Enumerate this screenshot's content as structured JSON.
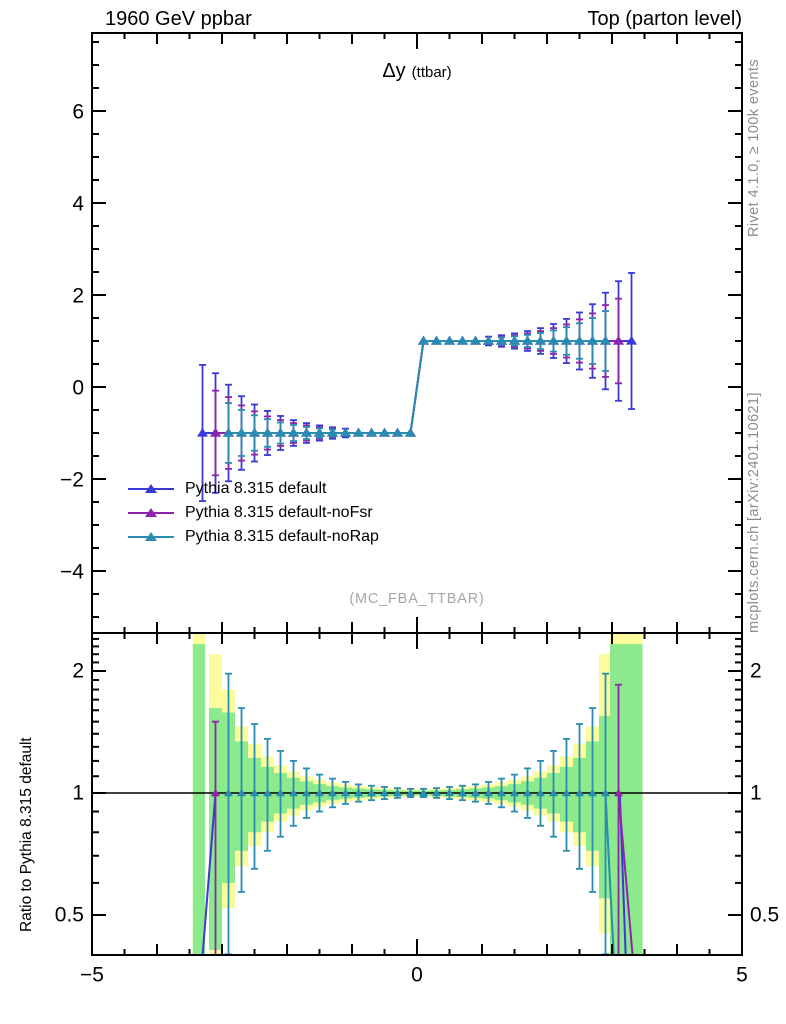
{
  "header": {
    "left": "1960 GeV ppbar",
    "right": "Top (parton level)"
  },
  "side_labels": {
    "top_right": "Rivet 4.1.0, ≥ 100k events",
    "bottom_right": "mcplots.cern.ch [arXiv:2401.10621]"
  },
  "watermark": "(MC_FBA_TTBAR)",
  "colors": {
    "blue": "#3a3ad6",
    "purple": "#8e24aa",
    "teal": "#2a8cb0",
    "band_yellow": "#fcfc9c",
    "band_green": "#8cea8c",
    "frame": "#000000",
    "gray_text": "#8c8c8c",
    "watermark_gray": "#a6a6a6"
  },
  "legend": {
    "items": [
      {
        "label": "Pythia 8.315 default",
        "color_key": "blue"
      },
      {
        "label": "Pythia 8.315 default-noFsr",
        "color_key": "purple"
      },
      {
        "label": "Pythia 8.315 default-noRap",
        "color_key": "teal"
      }
    ]
  },
  "chart_data": [
    {
      "type": "step-errorbar",
      "title_main": "Δy",
      "title_sub": "(ttbar)",
      "xlabel": "",
      "ylabel": "",
      "xlim": [
        -5,
        5
      ],
      "ylim": [
        -5.35,
        7.7
      ],
      "grid": false,
      "yticks": {
        "values": [
          -4,
          -2,
          0,
          2,
          4,
          6
        ],
        "labels": [
          "−4",
          "−2",
          "0",
          "2",
          "4",
          "6"
        ]
      },
      "series": [
        {
          "name": "Pythia 8.315 default",
          "color_key": "blue",
          "marker": "triangle",
          "bin_width": 0.2,
          "centers": [
            -3.3,
            -3.1,
            -2.9,
            -2.7,
            -2.5,
            -2.3,
            -2.1,
            -1.9,
            -1.7,
            -1.5,
            -1.3,
            -1.1,
            -0.9,
            -0.7,
            -0.5,
            -0.3,
            -0.1,
            0.1,
            0.3,
            0.5,
            0.7,
            0.9,
            1.1,
            1.3,
            1.5,
            1.7,
            1.9,
            2.1,
            2.3,
            2.5,
            2.7,
            2.9,
            3.1,
            3.3
          ],
          "values": [
            -1,
            -1,
            -1,
            -1,
            -1,
            -1,
            -1,
            -1,
            -1,
            -1,
            -1,
            -1,
            -1,
            -1,
            -1,
            -1,
            -1,
            1,
            1,
            1,
            1,
            1,
            1,
            1,
            1,
            1,
            1,
            1,
            1,
            1,
            1,
            1,
            1,
            1
          ],
          "errors": [
            1.48,
            1.3,
            1.05,
            0.8,
            0.62,
            0.48,
            0.37,
            0.28,
            0.215,
            0.165,
            0.125,
            0.095,
            0.075,
            0.06,
            0.05,
            0.042,
            0.036,
            0.036,
            0.042,
            0.05,
            0.06,
            0.075,
            0.095,
            0.125,
            0.165,
            0.215,
            0.28,
            0.37,
            0.48,
            0.62,
            0.8,
            1.05,
            1.3,
            1.48
          ]
        },
        {
          "name": "Pythia 8.315 default-noFsr",
          "color_key": "purple",
          "marker": "triangle",
          "bin_width": 0.2,
          "centers": [
            -3.1,
            -2.9,
            -2.7,
            -2.5,
            -2.3,
            -2.1,
            -1.9,
            -1.7,
            -1.5,
            -1.3,
            -1.1,
            -0.9,
            -0.7,
            -0.5,
            -0.3,
            -0.1,
            0.1,
            0.3,
            0.5,
            0.7,
            0.9,
            1.1,
            1.3,
            1.5,
            1.7,
            1.9,
            2.1,
            2.3,
            2.5,
            2.7,
            2.9,
            3.1
          ],
          "values": [
            -1,
            -1,
            -1,
            -1,
            -1,
            -1,
            -1,
            -1,
            -1,
            -1,
            -1,
            -1,
            -1,
            -1,
            -1,
            -1,
            1,
            1,
            1,
            1,
            1,
            1,
            1,
            1,
            1,
            1,
            1,
            1,
            1,
            1,
            1,
            1
          ],
          "errors": [
            0.92,
            0.78,
            0.6,
            0.47,
            0.36,
            0.28,
            0.215,
            0.165,
            0.125,
            0.095,
            0.073,
            0.058,
            0.047,
            0.039,
            0.033,
            0.028,
            0.028,
            0.033,
            0.039,
            0.047,
            0.058,
            0.073,
            0.095,
            0.125,
            0.165,
            0.215,
            0.28,
            0.36,
            0.47,
            0.6,
            0.78,
            0.92
          ]
        },
        {
          "name": "Pythia 8.315 default-noRap",
          "color_key": "teal",
          "marker": "triangle",
          "bin_width": 0.2,
          "centers": [
            -2.9,
            -2.7,
            -2.5,
            -2.3,
            -2.1,
            -1.9,
            -1.7,
            -1.5,
            -1.3,
            -1.1,
            -0.9,
            -0.7,
            -0.5,
            -0.3,
            -0.1,
            0.1,
            0.3,
            0.5,
            0.7,
            0.9,
            1.1,
            1.3,
            1.5,
            1.7,
            1.9,
            2.1,
            2.3,
            2.5,
            2.7,
            2.9
          ],
          "values": [
            -1,
            -1,
            -1,
            -1,
            -1,
            -1,
            -1,
            -1,
            -1,
            -1,
            -1,
            -1,
            -1,
            -1,
            -1,
            1,
            1,
            1,
            1,
            1,
            1,
            1,
            1,
            1,
            1,
            1,
            1,
            1,
            1,
            1
          ],
          "errors": [
            0.65,
            0.5,
            0.385,
            0.3,
            0.23,
            0.175,
            0.133,
            0.102,
            0.078,
            0.059,
            0.047,
            0.037,
            0.031,
            0.026,
            0.022,
            0.022,
            0.026,
            0.031,
            0.037,
            0.047,
            0.059,
            0.078,
            0.102,
            0.133,
            0.175,
            0.23,
            0.3,
            0.385,
            0.5,
            0.65
          ]
        }
      ]
    },
    {
      "type": "ratio",
      "ylabel": "Ratio to Pythia 8.315 default",
      "yscale": "log",
      "xlim": [
        -5,
        5
      ],
      "ylim": [
        0.4,
        2.48
      ],
      "reference_line": 1,
      "yticks": {
        "values": [
          0.5,
          1,
          2
        ],
        "labels": [
          "0.5",
          "1",
          "2"
        ]
      },
      "yticks_right": {
        "values": [
          0.5,
          1,
          2
        ],
        "labels": [
          "0.5",
          "1",
          "2"
        ]
      },
      "xticks": {
        "values": [
          -5,
          0,
          5
        ],
        "labels": [
          "−5",
          "0",
          "5"
        ]
      },
      "bands_note": "each band row: [bin_center, yellow_hi, yellow_lo, green_hi, green_lo] in ratio units",
      "bands": [
        [
          -3.1,
          2.2,
          0.4,
          1.62,
          0.41
        ],
        [
          -2.9,
          1.8,
          0.52,
          1.58,
          0.6
        ],
        [
          -2.7,
          1.46,
          0.66,
          1.34,
          0.72
        ],
        [
          -2.5,
          1.32,
          0.74,
          1.22,
          0.8
        ],
        [
          -2.3,
          1.23,
          0.8,
          1.16,
          0.85
        ],
        [
          -2.1,
          1.17,
          0.85,
          1.12,
          0.89
        ],
        [
          -1.9,
          1.13,
          0.88,
          1.09,
          0.915
        ],
        [
          -1.7,
          1.1,
          0.905,
          1.068,
          0.935
        ],
        [
          -1.5,
          1.078,
          0.925,
          1.052,
          0.948
        ],
        [
          -1.3,
          1.062,
          0.94,
          1.04,
          0.96
        ],
        [
          -1.1,
          1.05,
          0.95,
          1.032,
          0.968
        ],
        [
          -0.9,
          1.04,
          0.958,
          1.026,
          0.973
        ],
        [
          -0.7,
          1.034,
          0.965,
          1.022,
          0.977
        ],
        [
          -0.5,
          1.028,
          0.971,
          1.018,
          0.981
        ],
        [
          -0.3,
          1.024,
          0.975,
          1.015,
          0.984
        ],
        [
          -0.1,
          1.021,
          0.978,
          1.013,
          0.986
        ],
        [
          0.1,
          1.021,
          0.978,
          1.013,
          0.986
        ],
        [
          0.3,
          1.024,
          0.975,
          1.015,
          0.984
        ],
        [
          0.5,
          1.028,
          0.971,
          1.018,
          0.981
        ],
        [
          0.7,
          1.034,
          0.965,
          1.022,
          0.977
        ],
        [
          0.9,
          1.04,
          0.958,
          1.026,
          0.973
        ],
        [
          1.1,
          1.05,
          0.95,
          1.032,
          0.968
        ],
        [
          1.3,
          1.062,
          0.94,
          1.04,
          0.96
        ],
        [
          1.5,
          1.078,
          0.925,
          1.052,
          0.948
        ],
        [
          1.7,
          1.1,
          0.905,
          1.068,
          0.935
        ],
        [
          1.9,
          1.13,
          0.88,
          1.09,
          0.915
        ],
        [
          2.1,
          1.17,
          0.85,
          1.12,
          0.89
        ],
        [
          2.3,
          1.23,
          0.8,
          1.16,
          0.85
        ],
        [
          2.5,
          1.32,
          0.74,
          1.22,
          0.8
        ],
        [
          2.7,
          1.46,
          0.66,
          1.34,
          0.72
        ],
        [
          2.9,
          2.2,
          0.45,
          1.55,
          0.55
        ]
      ],
      "full_bands": [
        {
          "x0": -3.45,
          "x1": -3.26,
          "yellow_hi": 2.48,
          "green_hi": 2.33,
          "lo": 0.4
        },
        {
          "x0": 2.97,
          "x1": 3.47,
          "yellow_hi": 2.48,
          "green_hi": 2.33,
          "lo": 0.4
        }
      ],
      "ratio_points": {
        "teal": {
          "centers": [
            -2.9,
            -2.7,
            -2.5,
            -2.3,
            -2.1,
            -1.9,
            -1.7,
            -1.5,
            -1.3,
            -1.1,
            -0.9,
            -0.7,
            -0.5,
            -0.3,
            -0.1,
            0.1,
            0.3,
            0.5,
            0.7,
            0.9,
            1.1,
            1.3,
            1.5,
            1.7,
            1.9,
            2.1,
            2.3,
            2.5,
            2.7,
            2.9
          ],
          "r": [
            1,
            1,
            1,
            1,
            1,
            1,
            1,
            1,
            1,
            1,
            1,
            1,
            1,
            1,
            1,
            1,
            1,
            1,
            1,
            1,
            1,
            1,
            1,
            1,
            1,
            1,
            1,
            1,
            1,
            1
          ],
          "up": [
            1.97,
            1.62,
            1.48,
            1.36,
            1.27,
            1.2,
            1.15,
            1.11,
            1.085,
            1.065,
            1.05,
            1.042,
            1.035,
            1.028,
            1.024,
            1.024,
            1.028,
            1.035,
            1.042,
            1.05,
            1.065,
            1.085,
            1.11,
            1.15,
            1.2,
            1.27,
            1.36,
            1.48,
            1.62,
            1.97
          ],
          "dn": [
            0.4,
            0.57,
            0.65,
            0.72,
            0.78,
            0.83,
            0.868,
            0.9,
            0.922,
            0.94,
            0.952,
            0.96,
            0.966,
            0.973,
            0.977,
            0.977,
            0.973,
            0.966,
            0.96,
            0.952,
            0.94,
            0.922,
            0.9,
            0.868,
            0.83,
            0.78,
            0.72,
            0.65,
            0.57,
            0.4
          ]
        },
        "purple": {
          "centers": [
            -3.1,
            3.1
          ],
          "r": [
            1,
            1
          ],
          "up": [
            1.5,
            1.85
          ],
          "dn": [
            0.33,
            0.3
          ]
        }
      },
      "dive_lines": [
        {
          "color_key": "blue",
          "pts": [
            [
              -3.32,
              0.36
            ],
            [
              -3.1,
              1.0
            ]
          ]
        },
        {
          "color_key": "teal",
          "pts": [
            [
              2.9,
              1.0
            ],
            [
              3.04,
              0.36
            ]
          ]
        },
        {
          "color_key": "blue",
          "pts": [
            [
              3.12,
              1.0
            ],
            [
              3.22,
              0.36
            ]
          ]
        },
        {
          "color_key": "purple",
          "pts": [
            [
              3.1,
              1.0
            ],
            [
              3.34,
              0.36
            ]
          ]
        }
      ]
    }
  ]
}
